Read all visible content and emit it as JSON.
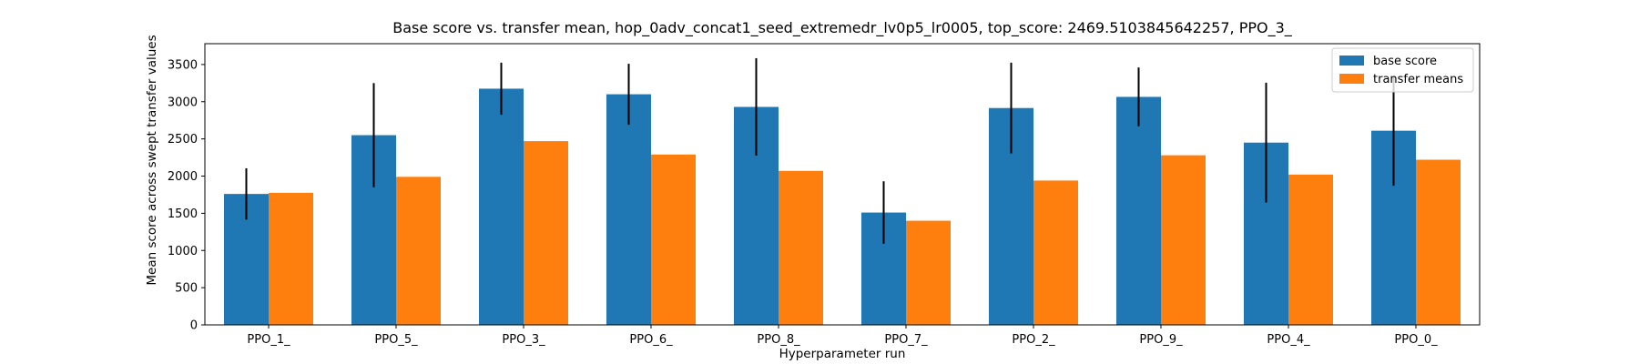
{
  "chart_data": {
    "type": "bar",
    "title": "Base score vs. transfer mean, hop_0adv_concat1_seed_extremedr_lv0p5_lr0005, top_score: 2469.5103845642257, PPO_3_",
    "xlabel": "Hyperparameter run",
    "ylabel": "Mean score across swept transfer values",
    "categories": [
      "PPO_1_",
      "PPO_5_",
      "PPO_3_",
      "PPO_6_",
      "PPO_8_",
      "PPO_7_",
      "PPO_2_",
      "PPO_9_",
      "PPO_4_",
      "PPO_0_"
    ],
    "ylim": [
      0,
      3780
    ],
    "yticks": [
      0,
      500,
      1000,
      1500,
      2000,
      2500,
      3000,
      3500
    ],
    "grid": false,
    "legend_position": "top-right",
    "series": [
      {
        "name": "base score",
        "color": "#1f77b4",
        "values": [
          1760,
          2550,
          3175,
          3100,
          2930,
          1510,
          2915,
          3065,
          2450,
          2610
        ],
        "error": [
          345,
          700,
          350,
          410,
          655,
          420,
          610,
          395,
          805,
          740
        ]
      },
      {
        "name": "transfer means",
        "color": "#ff7f0e",
        "values": [
          1775,
          1990,
          2470,
          2290,
          2070,
          1400,
          1940,
          2280,
          2020,
          2220
        ]
      }
    ]
  }
}
